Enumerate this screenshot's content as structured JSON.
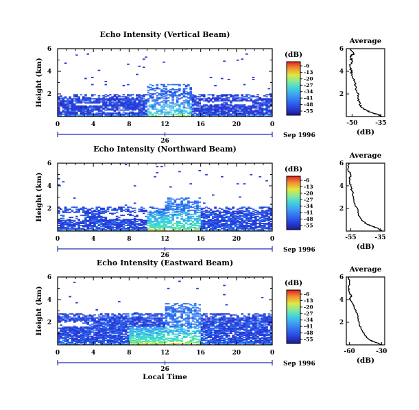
{
  "chart_data": [
    {
      "type": "heatmap",
      "title": "Echo Intensity (Vertical Beam)",
      "ylabel": "Height (km)",
      "xlim": [
        0,
        24
      ],
      "ylim": [
        0,
        6
      ],
      "xticks": [
        "0",
        "4",
        "8",
        "12",
        "16",
        "20",
        "0"
      ],
      "yticks": [
        "2",
        "4",
        "6"
      ],
      "date_axis": {
        "ticks": [
          "26"
        ],
        "label": "Sep 1996"
      },
      "colorbar": {
        "label": "(dB)",
        "ticks": [
          "-6",
          "-13",
          "-20",
          "-27",
          "-34",
          "-41",
          "-48",
          "-55"
        ]
      },
      "echo_profile": {
        "bands": [
          {
            "x_start": 0,
            "x_end": 24,
            "top": 1.9,
            "level": 0.15,
            "density": 0.85
          },
          {
            "x_start": 10,
            "x_end": 15,
            "top": 2.8,
            "level": 0.22,
            "density": 0.5
          }
        ],
        "gaps": [
          {
            "x_start": 2,
            "x_end": 5,
            "y_start": 0.9,
            "y_end": 1.1
          },
          {
            "x_start": 16,
            "x_end": 22,
            "y_start": 1.0,
            "y_end": 1.3
          },
          {
            "x_start": 4,
            "x_end": 9,
            "y_start": 0.3,
            "y_end": 0.5
          }
        ],
        "hot": [
          {
            "x_start": 10,
            "x_end": 15,
            "y_start": 0.0,
            "y_end": 1.4,
            "level": 0.45
          }
        ]
      },
      "average": {
        "title": "Average",
        "xlabel": "(dB)",
        "xlim": [
          -53,
          -33
        ],
        "xticks": [
          "-50",
          "-35"
        ],
        "yticks": [
          "2",
          "4",
          "6"
        ],
        "ylim": [
          0,
          6
        ],
        "profile": [
          [
            -35,
            0
          ],
          [
            -36,
            0.15
          ],
          [
            -39,
            0.3
          ],
          [
            -42,
            0.5
          ],
          [
            -45,
            0.8
          ],
          [
            -46,
            1.1
          ],
          [
            -47,
            1.6
          ],
          [
            -46.5,
            2.0
          ],
          [
            -48,
            2.5
          ],
          [
            -48.5,
            3.1
          ],
          [
            -50,
            3.6
          ],
          [
            -50.5,
            4.0
          ],
          [
            -51,
            4.5
          ],
          [
            -50,
            4.9
          ],
          [
            -51,
            5.3
          ],
          [
            -49,
            5.6
          ],
          [
            -51,
            6.0
          ]
        ]
      }
    },
    {
      "type": "heatmap",
      "title": "Echo Intensity (Northward Beam)",
      "ylabel": "Height (km)",
      "xlim": [
        0,
        24
      ],
      "ylim": [
        0,
        6
      ],
      "xticks": [
        "0",
        "4",
        "8",
        "12",
        "16",
        "20",
        "0"
      ],
      "yticks": [
        "2",
        "4",
        "6"
      ],
      "date_axis": {
        "ticks": [
          "26"
        ],
        "label": "Sep 1996"
      },
      "colorbar": {
        "label": "(dB)",
        "ticks": [
          "-6",
          "-13",
          "-20",
          "-27",
          "-34",
          "-41",
          "-48",
          "-55"
        ]
      },
      "echo_profile": {
        "bands": [
          {
            "x_start": 0,
            "x_end": 24,
            "top": 2.1,
            "level": 0.17,
            "density": 0.8
          },
          {
            "x_start": 12,
            "x_end": 16,
            "top": 2.9,
            "level": 0.25,
            "density": 0.55
          }
        ],
        "gaps": [
          {
            "x_start": 0,
            "x_end": 3,
            "y_start": 0.9,
            "y_end": 1.6
          },
          {
            "x_start": 5,
            "x_end": 10,
            "y_start": 1.0,
            "y_end": 1.7
          }
        ],
        "hot": [
          {
            "x_start": 10,
            "x_end": 16,
            "y_start": 0.0,
            "y_end": 1.8,
            "level": 0.5
          }
        ]
      },
      "average": {
        "title": "Average",
        "xlabel": "(dB)",
        "xlim": [
          -58,
          -32
        ],
        "xticks": [
          "-55",
          "-35"
        ],
        "yticks": [
          "2",
          "4",
          "6"
        ],
        "ylim": [
          0,
          6
        ],
        "profile": [
          [
            -34,
            0
          ],
          [
            -36,
            0.2
          ],
          [
            -40,
            0.4
          ],
          [
            -44,
            0.6
          ],
          [
            -47,
            0.9
          ],
          [
            -49,
            1.3
          ],
          [
            -50,
            1.8
          ],
          [
            -52,
            2.4
          ],
          [
            -53,
            3.0
          ],
          [
            -54,
            3.5
          ],
          [
            -55,
            4.0
          ],
          [
            -56,
            4.5
          ],
          [
            -55,
            5.0
          ],
          [
            -57,
            5.4
          ],
          [
            -56,
            6.0
          ]
        ]
      }
    },
    {
      "type": "heatmap",
      "title": "Echo Intensity (Eastward Beam)",
      "ylabel": "Height (km)",
      "xlim": [
        0,
        24
      ],
      "ylim": [
        0,
        6
      ],
      "xticks": [
        "0",
        "4",
        "8",
        "12",
        "16",
        "20",
        "0"
      ],
      "yticks": [
        "2",
        "4",
        "6"
      ],
      "date_axis": {
        "ticks": [
          "26"
        ],
        "label": "Sep 1996"
      },
      "xlabel": "Local Time",
      "colorbar": {
        "label": "(dB)",
        "ticks": [
          "-6",
          "-13",
          "-20",
          "-27",
          "-34",
          "-41",
          "-48",
          "-55"
        ]
      },
      "echo_profile": {
        "bands": [
          {
            "x_start": 0,
            "x_end": 24,
            "top": 2.7,
            "level": 0.17,
            "density": 0.85
          },
          {
            "x_start": 12,
            "x_end": 16,
            "top": 3.6,
            "level": 0.24,
            "density": 0.55
          }
        ],
        "gaps": [
          {
            "x_start": 0,
            "x_end": 4,
            "y_start": 1.6,
            "y_end": 2.0
          }
        ],
        "hot": [
          {
            "x_start": 8,
            "x_end": 16,
            "y_start": 0.0,
            "y_end": 1.6,
            "level": 0.55
          }
        ]
      },
      "average": {
        "title": "Average",
        "xlabel": "(dB)",
        "xlim": [
          -63,
          -27
        ],
        "xticks": [
          "-60",
          "-30"
        ],
        "yticks": [
          "2",
          "4",
          "6"
        ],
        "ylim": [
          0,
          6
        ],
        "profile": [
          [
            -30,
            0
          ],
          [
            -33,
            0.15
          ],
          [
            -38,
            0.3
          ],
          [
            -42,
            0.5
          ],
          [
            -46,
            0.9
          ],
          [
            -49,
            1.4
          ],
          [
            -51,
            1.9
          ],
          [
            -52,
            2.5
          ],
          [
            -54,
            3.0
          ],
          [
            -56,
            3.4
          ],
          [
            -58,
            3.8
          ],
          [
            -60,
            4.1
          ],
          [
            -58,
            4.3
          ],
          [
            -60,
            4.6
          ],
          [
            -61,
            5.1
          ],
          [
            -60,
            5.5
          ],
          [
            -61,
            6.0
          ]
        ]
      }
    }
  ],
  "colors": {
    "scale": [
      "#1a1a8e",
      "#2a3cd6",
      "#2f6cf0",
      "#3fa0f0",
      "#3fd0e0",
      "#50e8b0",
      "#a0f060",
      "#e8e040",
      "#f0a030",
      "#e85030",
      "#d02020"
    ],
    "date_line": "#1a2fb0"
  }
}
